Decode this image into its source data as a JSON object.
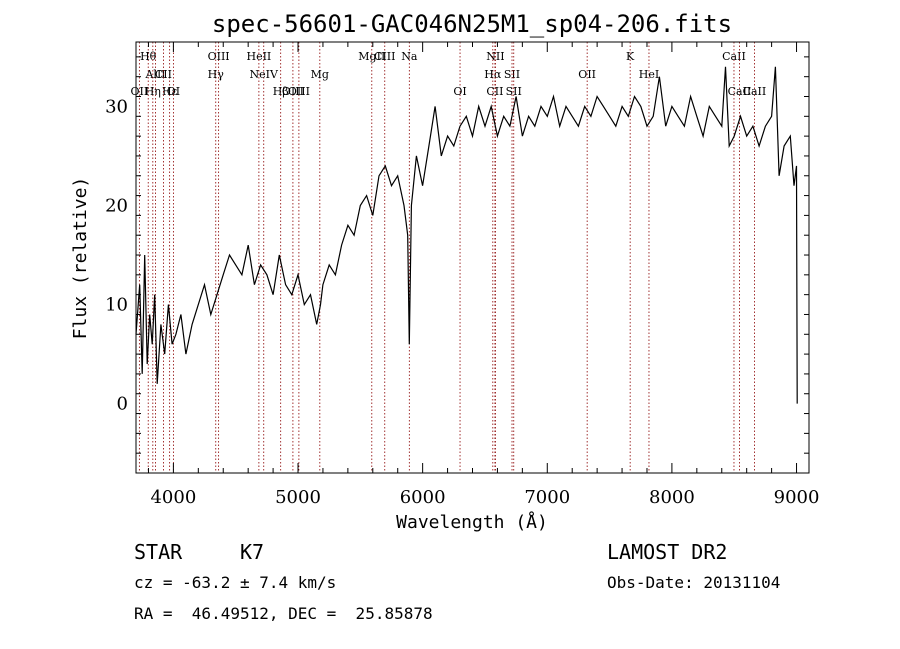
{
  "chart_data": {
    "type": "line",
    "title": "spec-56601-GAC046N25M1_sp04-206.fits",
    "xlabel": "Wavelength (Å)",
    "ylabel": "Flux (relative)",
    "xlim": [
      3700,
      9100
    ],
    "ylim": [
      -7,
      36.5
    ],
    "xticks": [
      4000,
      5000,
      6000,
      7000,
      8000,
      9000
    ],
    "yticks": [
      0,
      10,
      20,
      30
    ],
    "grid": false,
    "series": [
      {
        "x": [
          3700,
          3730,
          3750,
          3770,
          3790,
          3810,
          3830,
          3850,
          3870,
          3900,
          3930,
          3960,
          3990,
          4020,
          4060,
          4100,
          4150,
          4200,
          4250,
          4300,
          4350,
          4400,
          4450,
          4500,
          4550,
          4600,
          4650,
          4700,
          4750,
          4800,
          4850,
          4900,
          4950,
          5000,
          5050,
          5100,
          5150,
          5180,
          5200,
          5250,
          5300,
          5350,
          5400,
          5450,
          5500,
          5550,
          5600,
          5650,
          5700,
          5750,
          5800,
          5850,
          5880,
          5893,
          5910,
          5950,
          6000,
          6050,
          6100,
          6150,
          6200,
          6250,
          6300,
          6350,
          6400,
          6450,
          6500,
          6550,
          6600,
          6650,
          6700,
          6750,
          6800,
          6850,
          6900,
          6950,
          7000,
          7050,
          7100,
          7150,
          7200,
          7250,
          7300,
          7350,
          7400,
          7450,
          7500,
          7550,
          7600,
          7650,
          7700,
          7750,
          7800,
          7850,
          7900,
          7950,
          8000,
          8050,
          8100,
          8150,
          8200,
          8250,
          8300,
          8350,
          8400,
          8430,
          8460,
          8500,
          8550,
          8600,
          8650,
          8700,
          8750,
          8800,
          8830,
          8860,
          8900,
          8950,
          8980,
          9000,
          9005
        ],
        "y": [
          7,
          12,
          3,
          15,
          4,
          9,
          6,
          11,
          2,
          8,
          5,
          10,
          6,
          7,
          9,
          5,
          8,
          10,
          12,
          9,
          11,
          13,
          15,
          14,
          13,
          16,
          12,
          14,
          13,
          11,
          15,
          12,
          11,
          13,
          10,
          11,
          8,
          10,
          12,
          14,
          13,
          16,
          18,
          17,
          20,
          21,
          19,
          23,
          24,
          22,
          23,
          20,
          17,
          6,
          20,
          25,
          22,
          26,
          30,
          25,
          27,
          26,
          28,
          29,
          27,
          30,
          28,
          30,
          27,
          29,
          28,
          31,
          27,
          29,
          28,
          30,
          29,
          31,
          28,
          30,
          29,
          28,
          30,
          29,
          31,
          30,
          29,
          28,
          30,
          29,
          31,
          30,
          28,
          29,
          33,
          28,
          30,
          29,
          28,
          31,
          29,
          27,
          30,
          29,
          28,
          34,
          26,
          27,
          29,
          27,
          28,
          26,
          28,
          29,
          34,
          23,
          26,
          27,
          22,
          24,
          0
        ]
      }
    ],
    "lines": [
      {
        "label": "Hθ",
        "x": 3798,
        "row": 1
      },
      {
        "label": "AlII",
        "x": 3857,
        "row": 2
      },
      {
        "label": "OII",
        "x": 3727,
        "row": 3
      },
      {
        "label": "Hη",
        "x": 3835,
        "row": 3
      },
      {
        "label": "Hε",
        "x": 3970,
        "row": 3
      },
      {
        "label": "CII",
        "x": 3920,
        "row": 2
      },
      {
        "label": "OI",
        "x": 4000,
        "row": 3
      },
      {
        "label": "OIII",
        "x": 4363,
        "row": 1
      },
      {
        "label": "Hγ",
        "x": 4340,
        "row": 2
      },
      {
        "label": "HeII",
        "x": 4686,
        "row": 1
      },
      {
        "label": "NeIV",
        "x": 4725,
        "row": 2
      },
      {
        "label": "OIII",
        "x": 4959,
        "row": 3
      },
      {
        "label": "OIII",
        "x": 5007,
        "row": 3
      },
      {
        "label": "Hβ",
        "x": 4861,
        "row": 3
      },
      {
        "label": "Mg",
        "x": 5175,
        "row": 2
      },
      {
        "label": "MgII",
        "x": 5592,
        "row": 1
      },
      {
        "label": "CIII",
        "x": 5696,
        "row": 1
      },
      {
        "label": "Na",
        "x": 5893,
        "row": 1
      },
      {
        "label": "OI",
        "x": 6300,
        "row": 3
      },
      {
        "label": "NII",
        "x": 6584,
        "row": 1
      },
      {
        "label": "Hα",
        "x": 6563,
        "row": 2
      },
      {
        "label": "SII",
        "x": 6717,
        "row": 2
      },
      {
        "label": "SII",
        "x": 6731,
        "row": 3
      },
      {
        "label": "CII",
        "x": 6580,
        "row": 3
      },
      {
        "label": "OII",
        "x": 7320,
        "row": 2
      },
      {
        "label": "K",
        "x": 7665,
        "row": 1
      },
      {
        "label": "HeI",
        "x": 7816,
        "row": 2
      },
      {
        "label": "CaII",
        "x": 8498,
        "row": 1
      },
      {
        "label": "CaII",
        "x": 8542,
        "row": 3
      },
      {
        "label": "CaII",
        "x": 8662,
        "row": 3
      }
    ]
  },
  "info": {
    "class": "STAR",
    "subclass": "K7",
    "cz": "cz = -63.2 ± 7.4 km/s",
    "radec": "RA =  46.49512, DEC =  25.85878",
    "survey": "LAMOST DR2",
    "obsdate": "Obs-Date: 20131104"
  },
  "colors": {
    "spectrum": "#000000",
    "line_markers": "#8b0000"
  }
}
